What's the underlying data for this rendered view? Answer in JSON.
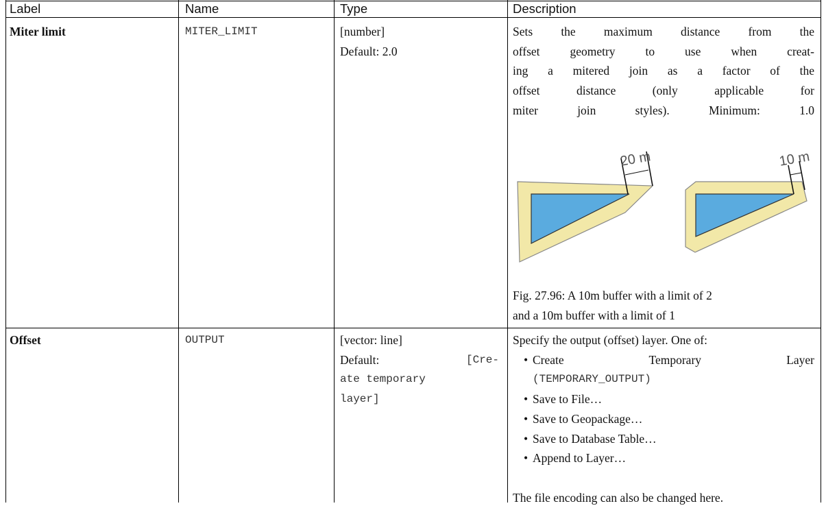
{
  "table": {
    "headers": [
      "Label",
      "Name",
      "Type",
      "Description"
    ],
    "rows": [
      {
        "label": "Miter limit",
        "name": "MITER_LIMIT",
        "type": [
          "[number]",
          "Default: 2.0"
        ],
        "description": [
          "Sets the maximum distance from the",
          "offset geometry to use when creat-",
          "ing a mitered join as a factor of the",
          "offset distance (only applicable for",
          "miter join styles). Minimum: 1.0"
        ],
        "figure": {
          "labels": [
            "20 m",
            "10 m"
          ],
          "caption": [
            "Fig. 27.96: A 10m buffer with a limit of 2",
            "and a 10m buffer with a limit of 1"
          ]
        }
      },
      {
        "label": "Offset",
        "name": "OUTPUT",
        "type": "[vector: line]",
        "default_label": "Default:",
        "default_value": [
          "[Cre-",
          "ate temporary",
          "layer]"
        ],
        "description": {
          "intro": "Specify the output (offset) layer. One of:",
          "options": [
            "Create Temporary Layer",
            "Save to File…",
            "Save to Geopackage…",
            "Save to Database Table…",
            "Append to Layer…"
          ],
          "option_code": "(TEMPORARY_OUTPUT)",
          "note": "The file encoding can also be changed here."
        }
      }
    ]
  }
}
